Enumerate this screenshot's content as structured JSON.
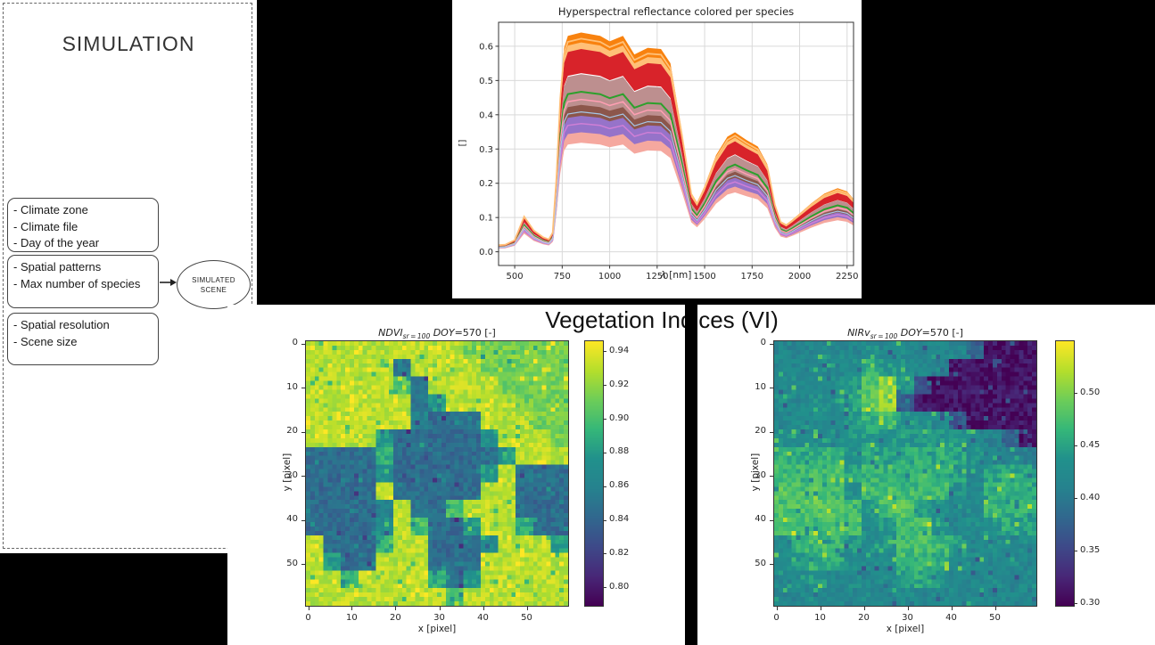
{
  "canvas": {
    "background": "#000000",
    "panel_color": "#ffffff"
  },
  "simulation_panel": {
    "title": "SIMULATION",
    "boxes": [
      {
        "lines": [
          "- Climate zone",
          "- Climate file",
          "- Day of the year"
        ]
      },
      {
        "lines": [
          "- Spatial patterns",
          "- Max number of species"
        ]
      },
      {
        "lines": [
          "- Spatial resolution",
          "- Scene size"
        ]
      }
    ],
    "scene_line1": "SIMULATED",
    "scene_line2": "SCENE"
  },
  "vi_section": {
    "title": "Vegetation Indices (VI)"
  },
  "chart_data": [
    {
      "type": "line",
      "title": "Hyperspectral reflectance colored per species",
      "xlabel_math": "λ",
      "xlabel_rest": " [nm]",
      "ylabel": "[]",
      "xlim": [
        415,
        2284
      ],
      "ylim": [
        -0.04,
        0.67
      ],
      "xticks": [
        500,
        750,
        1000,
        1250,
        1500,
        1750,
        2000,
        2250
      ],
      "yticks": [
        0.0,
        0.1,
        0.2,
        0.3,
        0.4,
        0.5,
        0.6
      ],
      "grid": true,
      "legend": "none",
      "x": [
        400,
        450,
        500,
        550,
        600,
        650,
        680,
        700,
        720,
        740,
        760,
        780,
        850,
        950,
        1000,
        1070,
        1130,
        1200,
        1270,
        1320,
        1380,
        1430,
        1460,
        1500,
        1560,
        1620,
        1660,
        1720,
        1780,
        1830,
        1870,
        1900,
        1930,
        1960,
        2000,
        2060,
        2130,
        2200,
        2250,
        2300
      ],
      "base_reflectance": [
        0.03,
        0.033,
        0.055,
        0.165,
        0.1,
        0.068,
        0.058,
        0.09,
        0.35,
        0.72,
        0.93,
        0.985,
        1.0,
        0.985,
        0.96,
        0.985,
        0.9,
        0.93,
        0.925,
        0.86,
        0.55,
        0.27,
        0.225,
        0.3,
        0.44,
        0.525,
        0.545,
        0.51,
        0.48,
        0.4,
        0.22,
        0.14,
        0.125,
        0.145,
        0.175,
        0.22,
        0.265,
        0.29,
        0.275,
        0.225
      ],
      "nir_peak": 0.64,
      "series": [
        {
          "name": "species-rosybrown",
          "style": "band",
          "range": [
            0.655,
            0.81
          ],
          "color": "#bd8f8f"
        },
        {
          "name": "species-green",
          "style": "line",
          "pos": 0.73,
          "width": 2.0,
          "color": "#2ca02c"
        },
        {
          "name": "species-pink",
          "style": "line",
          "pos": 0.695,
          "width": 1.5,
          "color": "#ff9fb3"
        },
        {
          "name": "species-purple",
          "style": "band",
          "range": [
            0.535,
            0.625
          ],
          "color": "#9673c9"
        },
        {
          "name": "species-brown",
          "style": "band",
          "range": [
            0.62,
            0.67
          ],
          "color": "#8c564b"
        },
        {
          "name": "species-orchid",
          "style": "line",
          "pos": 0.585,
          "width": 1.5,
          "color": "#cf7fd6"
        },
        {
          "name": "species-lightblue",
          "style": "line",
          "pos": 0.638,
          "width": 1.2,
          "color": "#a5c8e9"
        },
        {
          "name": "species-salmon",
          "style": "band",
          "range": [
            0.497,
            0.545
          ],
          "color": "#f5a89f"
        },
        {
          "name": "species-red",
          "style": "band",
          "range": [
            0.815,
            0.945
          ],
          "color": "#d8232a"
        },
        {
          "name": "species-lightorange",
          "style": "band",
          "range": [
            0.925,
            0.96
          ],
          "color": "#ffc078"
        },
        {
          "name": "species-orange",
          "style": "band",
          "range": [
            0.955,
            1.0
          ],
          "color": "#f8820f"
        },
        {
          "name": "species-lightorange-line",
          "style": "line",
          "pos": 0.972,
          "width": 1.8,
          "color": "#ffc078"
        }
      ]
    },
    {
      "type": "heatmap",
      "title_prefix": "NDVI",
      "title_sub": "sr = 100",
      "title_mid": " DOY",
      "title_suffix": "=570 [-]",
      "xlabel": "x [pixel]",
      "ylabel": "y [pixel]",
      "xticks": [
        0,
        10,
        20,
        30,
        40,
        50
      ],
      "yticks": [
        0,
        10,
        20,
        30,
        40,
        50
      ],
      "grid_size": 60,
      "colormap": "viridis",
      "vmin": 0.789,
      "vmax": 0.946,
      "noise": 0.011,
      "colorbar_ticks": [
        "0.94",
        "0.92",
        "0.90",
        "0.88",
        "0.86",
        "0.84",
        "0.82",
        "0.80"
      ],
      "values_coarse": [
        [
          0.93,
          0.932,
          0.93,
          0.928,
          0.93,
          0.931,
          0.93,
          0.929,
          0.93,
          0.913,
          0.912,
          0.914,
          0.913,
          0.912,
          0.913
        ],
        [
          0.931,
          0.93,
          0.929,
          0.93,
          0.93,
          0.85,
          0.928,
          0.93,
          0.929,
          0.93,
          0.913,
          0.912,
          0.913,
          0.914,
          0.912
        ],
        [
          0.93,
          0.929,
          0.93,
          0.931,
          0.93,
          0.9,
          0.848,
          0.93,
          0.929,
          0.93,
          0.93,
          0.913,
          0.912,
          0.913,
          0.914
        ],
        [
          0.929,
          0.93,
          0.93,
          0.929,
          0.93,
          0.93,
          0.852,
          0.88,
          0.93,
          0.929,
          0.93,
          0.93,
          0.912,
          0.913,
          0.912
        ],
        [
          0.93,
          0.931,
          0.929,
          0.93,
          0.93,
          0.929,
          0.86,
          0.845,
          0.848,
          0.85,
          0.93,
          0.93,
          0.929,
          0.913,
          0.912
        ],
        [
          0.93,
          0.929,
          0.93,
          0.93,
          0.88,
          0.843,
          0.846,
          0.844,
          0.845,
          0.843,
          0.87,
          0.93,
          0.929,
          0.93,
          0.913
        ],
        [
          0.846,
          0.844,
          0.845,
          0.847,
          0.89,
          0.844,
          0.843,
          0.846,
          0.844,
          0.845,
          0.846,
          0.88,
          0.93,
          0.929,
          0.93
        ],
        [
          0.845,
          0.843,
          0.846,
          0.844,
          0.87,
          0.845,
          0.844,
          0.843,
          0.846,
          0.844,
          0.88,
          0.93,
          0.85,
          0.846,
          0.845
        ],
        [
          0.844,
          0.846,
          0.843,
          0.845,
          0.93,
          0.846,
          0.845,
          0.844,
          0.843,
          0.846,
          0.93,
          0.929,
          0.846,
          0.844,
          0.845
        ],
        [
          0.845,
          0.843,
          0.846,
          0.844,
          0.86,
          0.93,
          0.848,
          0.845,
          0.9,
          0.93,
          0.929,
          0.93,
          0.845,
          0.843,
          0.846
        ],
        [
          0.844,
          0.846,
          0.843,
          0.845,
          0.87,
          0.93,
          0.9,
          0.846,
          0.844,
          0.88,
          0.93,
          0.929,
          0.89,
          0.846,
          0.844
        ],
        [
          0.93,
          0.846,
          0.844,
          0.845,
          0.89,
          0.93,
          0.93,
          0.845,
          0.843,
          0.846,
          0.87,
          0.93,
          0.929,
          0.93,
          0.88
        ],
        [
          0.929,
          0.88,
          0.845,
          0.846,
          0.93,
          0.93,
          0.93,
          0.846,
          0.844,
          0.845,
          0.93,
          0.929,
          0.93,
          0.93,
          0.929
        ],
        [
          0.93,
          0.929,
          0.89,
          0.93,
          0.929,
          0.93,
          0.93,
          0.89,
          0.846,
          0.88,
          0.93,
          0.93,
          0.929,
          0.93,
          0.93
        ],
        [
          0.929,
          0.93,
          0.93,
          0.929,
          0.93,
          0.929,
          0.93,
          0.93,
          0.9,
          0.93,
          0.929,
          0.93,
          0.93,
          0.929,
          0.93
        ]
      ]
    },
    {
      "type": "heatmap",
      "title_prefix": "NIRv",
      "title_sub": "sr = 100",
      "title_mid": " DOY",
      "title_suffix": "=570 [-]",
      "xlabel": "x [pixel]",
      "ylabel": "y [pixel]",
      "xticks": [
        0,
        10,
        20,
        30,
        40,
        50
      ],
      "yticks": [
        0,
        10,
        20,
        30,
        40,
        50
      ],
      "grid_size": 60,
      "colormap": "viridis",
      "vmin": 0.2975,
      "vmax": 0.5495,
      "noise": 0.019,
      "colorbar_ticks": [
        "0.50",
        "0.45",
        "0.40",
        "0.35",
        "0.30"
      ],
      "values_coarse": [
        [
          0.42,
          0.415,
          0.42,
          0.425,
          0.42,
          0.43,
          0.42,
          0.425,
          0.42,
          0.415,
          0.42,
          0.38,
          0.312,
          0.308,
          0.31
        ],
        [
          0.415,
          0.42,
          0.425,
          0.42,
          0.43,
          0.46,
          0.44,
          0.43,
          0.42,
          0.4,
          0.313,
          0.309,
          0.311,
          0.307,
          0.31
        ],
        [
          0.42,
          0.425,
          0.42,
          0.43,
          0.44,
          0.48,
          0.51,
          0.44,
          0.36,
          0.312,
          0.309,
          0.311,
          0.308,
          0.31,
          0.309
        ],
        [
          0.425,
          0.42,
          0.43,
          0.425,
          0.45,
          0.49,
          0.52,
          0.37,
          0.313,
          0.31,
          0.312,
          0.308,
          0.31,
          0.309,
          0.311
        ],
        [
          0.42,
          0.43,
          0.425,
          0.43,
          0.44,
          0.46,
          0.47,
          0.44,
          0.43,
          0.42,
          0.37,
          0.312,
          0.309,
          0.311,
          0.308
        ],
        [
          0.43,
          0.425,
          0.43,
          0.435,
          0.44,
          0.445,
          0.44,
          0.445,
          0.44,
          0.44,
          0.435,
          0.42,
          0.415,
          0.38,
          0.32
        ],
        [
          0.46,
          0.455,
          0.46,
          0.465,
          0.44,
          0.455,
          0.45,
          0.455,
          0.46,
          0.455,
          0.45,
          0.43,
          0.41,
          0.415,
          0.41
        ],
        [
          0.47,
          0.465,
          0.47,
          0.475,
          0.45,
          0.465,
          0.46,
          0.465,
          0.47,
          0.46,
          0.45,
          0.42,
          0.45,
          0.455,
          0.45
        ],
        [
          0.48,
          0.475,
          0.48,
          0.47,
          0.43,
          0.47,
          0.475,
          0.47,
          0.465,
          0.47,
          0.43,
          0.42,
          0.46,
          0.465,
          0.46
        ],
        [
          0.475,
          0.48,
          0.485,
          0.48,
          0.47,
          0.44,
          0.475,
          0.48,
          0.44,
          0.43,
          0.42,
          0.425,
          0.465,
          0.46,
          0.465
        ],
        [
          0.47,
          0.475,
          0.47,
          0.48,
          0.475,
          0.43,
          0.44,
          0.475,
          0.48,
          0.44,
          0.42,
          0.425,
          0.44,
          0.455,
          0.45
        ],
        [
          0.43,
          0.465,
          0.47,
          0.465,
          0.44,
          0.43,
          0.435,
          0.47,
          0.475,
          0.47,
          0.45,
          0.42,
          0.425,
          0.42,
          0.425
        ],
        [
          0.425,
          0.44,
          0.46,
          0.455,
          0.43,
          0.425,
          0.43,
          0.46,
          0.465,
          0.46,
          0.43,
          0.425,
          0.42,
          0.425,
          0.42
        ],
        [
          0.42,
          0.425,
          0.44,
          0.42,
          0.425,
          0.42,
          0.425,
          0.44,
          0.455,
          0.44,
          0.425,
          0.42,
          0.425,
          0.42,
          0.425
        ],
        [
          0.415,
          0.42,
          0.425,
          0.42,
          0.42,
          0.425,
          0.42,
          0.425,
          0.42,
          0.42,
          0.425,
          0.42,
          0.415,
          0.42,
          0.425
        ]
      ]
    }
  ]
}
